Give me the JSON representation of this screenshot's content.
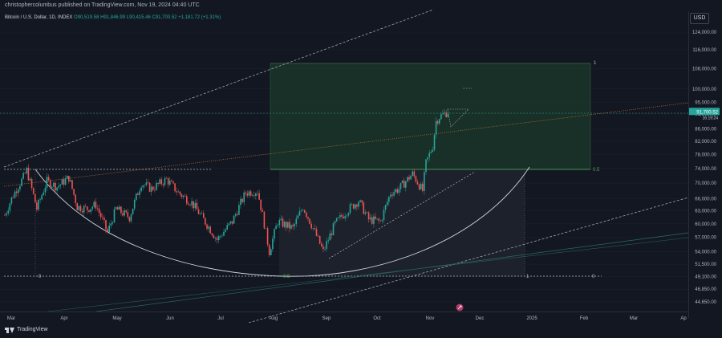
{
  "header": {
    "author_text": "christophercolumbus published on TradingView.com, Nov 19, 2024 04:40 UTC"
  },
  "symbol": {
    "name": "Bitcoin / U.S. Dollar, 1D, INDEX",
    "open": "O90,519.58",
    "high": "H91,846.99",
    "low": "L90,415.46",
    "close": "C91,700.52",
    "change": "+1,181.72 (+1.31%)"
  },
  "price_axis": {
    "currency": "USD",
    "ticks": [
      124000,
      116000,
      108000,
      100000,
      95000,
      91000,
      86000,
      82000,
      78000,
      74000,
      70000,
      66000,
      63000,
      60000,
      57000,
      54000,
      51500,
      49100,
      46850,
      44650
    ],
    "tick_labels": [
      "124,000.00",
      "116,000.00",
      "108,000.00",
      "100,000.00",
      "95,000.00",
      "91,000.00",
      "86,000.00",
      "82,000.00",
      "78,000.00",
      "74,000.00",
      "70,000.00",
      "66,000.00",
      "63,000.00",
      "60,000.00",
      "57,000.00",
      "54,000.00",
      "51,500.00",
      "49,100.00",
      "46,850.00",
      "44,650.00"
    ],
    "current_price_label": "91,700.52",
    "current_price_label_2": "16:19:24",
    "accent_color": "#26a69a"
  },
  "time_axis": {
    "labels": [
      "Mar",
      "Apr",
      "May",
      "Jun",
      "Jul",
      "Aug",
      "Sep",
      "Oct",
      "Nov",
      "Dec",
      "2025",
      "Feb",
      "Mar",
      "Ap"
    ]
  },
  "annotations": {
    "fib_top_label": "1",
    "fib_mid_label": "0.5",
    "fib_left_zero": "0",
    "fib_right_zero": "0",
    "fib_bottom_label": "0.5",
    "fib_bottom_one": "1"
  },
  "footer": {
    "brand": "TradingView"
  },
  "colors": {
    "background": "#131722",
    "up": "#26a69a",
    "down": "#ef5350",
    "box_green": "#1e3a2a",
    "trend_orange": "#c8733a"
  },
  "chart_data": {
    "type": "candlestick",
    "title": "Bitcoin / U.S. Dollar, 1D, INDEX",
    "ylabel": "USD",
    "ylim": [
      44000,
      130000
    ],
    "scale": "log",
    "x_start": "2024-03-01",
    "x_end": "2025-04-01",
    "price_path": [
      [
        "2024-03-01",
        62000
      ],
      [
        "2024-03-05",
        66000
      ],
      [
        "2024-03-08",
        68500
      ],
      [
        "2024-03-12",
        71500
      ],
      [
        "2024-03-14",
        73500
      ],
      [
        "2024-03-20",
        63500
      ],
      [
        "2024-03-26",
        70500
      ],
      [
        "2024-04-01",
        69000
      ],
      [
        "2024-04-08",
        71500
      ],
      [
        "2024-04-13",
        64000
      ],
      [
        "2024-04-19",
        63500
      ],
      [
        "2024-04-24",
        64500
      ],
      [
        "2024-05-01",
        58000
      ],
      [
        "2024-05-06",
        63500
      ],
      [
        "2024-05-14",
        61500
      ],
      [
        "2024-05-21",
        70000
      ],
      [
        "2024-05-27",
        68500
      ],
      [
        "2024-06-05",
        71000
      ],
      [
        "2024-06-12",
        67500
      ],
      [
        "2024-06-20",
        65000
      ],
      [
        "2024-06-26",
        61500
      ],
      [
        "2024-07-05",
        56500
      ],
      [
        "2024-07-14",
        60500
      ],
      [
        "2024-07-22",
        67500
      ],
      [
        "2024-07-29",
        68000
      ],
      [
        "2024-08-05",
        54000
      ],
      [
        "2024-08-10",
        60500
      ],
      [
        "2024-08-19",
        59000
      ],
      [
        "2024-08-25",
        64000
      ],
      [
        "2024-09-06",
        54000
      ],
      [
        "2024-09-13",
        60000
      ],
      [
        "2024-09-20",
        63000
      ],
      [
        "2024-09-27",
        65500
      ],
      [
        "2024-10-03",
        61000
      ],
      [
        "2024-10-10",
        60500
      ],
      [
        "2024-10-16",
        67500
      ],
      [
        "2024-10-21",
        68500
      ],
      [
        "2024-10-29",
        72500
      ],
      [
        "2024-11-04",
        68000
      ],
      [
        "2024-11-06",
        75500
      ],
      [
        "2024-11-10",
        80500
      ],
      [
        "2024-11-12",
        88500
      ],
      [
        "2024-11-14",
        90000
      ],
      [
        "2024-11-19",
        91700
      ]
    ]
  }
}
